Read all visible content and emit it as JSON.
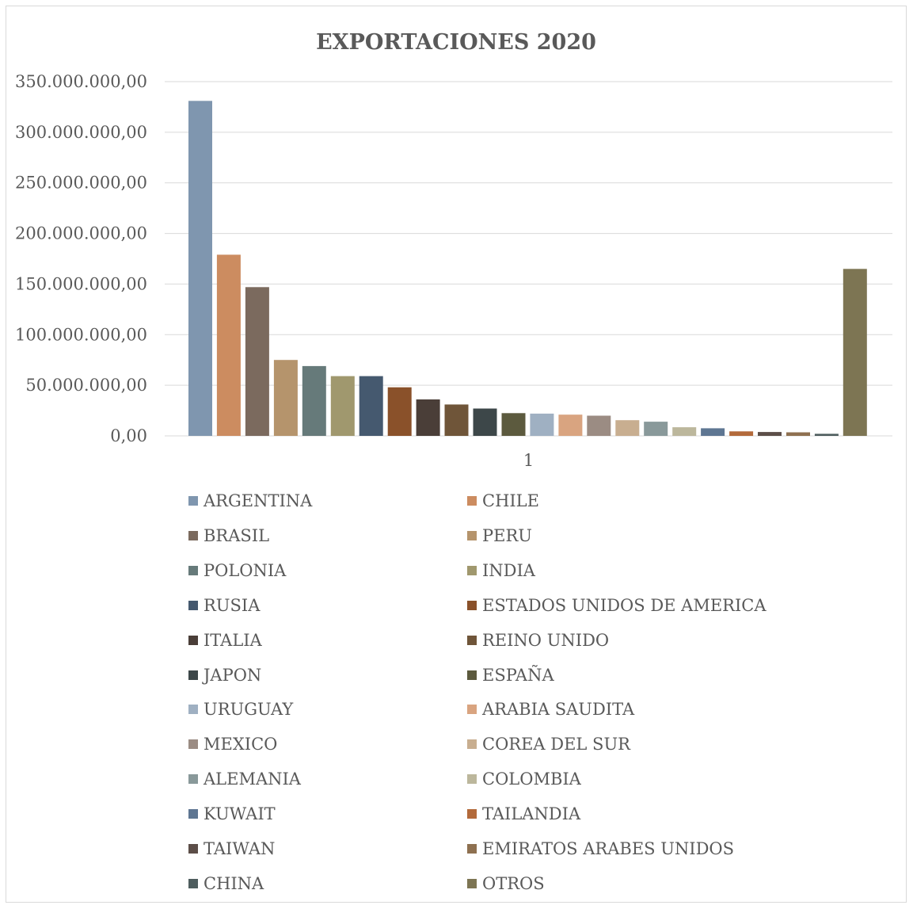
{
  "chart_data": {
    "type": "bar",
    "title": "EXPORTACIONES 2020",
    "categories": [
      "1"
    ],
    "ylim": [
      0,
      350000000
    ],
    "yticks": [
      0,
      50000000,
      100000000,
      150000000,
      200000000,
      250000000,
      300000000,
      350000000
    ],
    "ytick_labels": [
      "0,00",
      "50.000.000,00",
      "100.000.000,00",
      "150.000.000,00",
      "200.000.000,00",
      "250.000.000,00",
      "300.000.000,00",
      "350.000.000,00"
    ],
    "grid": true,
    "legend_position": "bottom",
    "series": [
      {
        "name": "ARGENTINA",
        "color": "#7f96af",
        "values": [
          331000000
        ]
      },
      {
        "name": "CHILE",
        "color": "#cc8c60",
        "values": [
          179000000
        ]
      },
      {
        "name": "BRASIL",
        "color": "#7b6a5e",
        "values": [
          147000000
        ]
      },
      {
        "name": "PERU",
        "color": "#b5946c",
        "values": [
          75000000
        ]
      },
      {
        "name": "POLONIA",
        "color": "#667a7a",
        "values": [
          69000000
        ]
      },
      {
        "name": "INDIA",
        "color": "#a0986e",
        "values": [
          59000000
        ]
      },
      {
        "name": "RUSIA",
        "color": "#45596f",
        "values": [
          59000000
        ]
      },
      {
        "name": "ESTADOS UNIDOS DE AMERICA",
        "color": "#8a512a",
        "values": [
          48000000
        ]
      },
      {
        "name": "ITALIA",
        "color": "#4a3e38",
        "values": [
          36000000
        ]
      },
      {
        "name": "REINO UNIDO",
        "color": "#6f5539",
        "values": [
          31000000
        ]
      },
      {
        "name": "JAPON",
        "color": "#3d4749",
        "values": [
          27000000
        ]
      },
      {
        "name": "ESPAÑA",
        "color": "#5c5a3e",
        "values": [
          22500000
        ]
      },
      {
        "name": "URUGUAY",
        "color": "#9fb0c2",
        "values": [
          22000000
        ]
      },
      {
        "name": "ARABIA SAUDITA",
        "color": "#d9a480",
        "values": [
          21000000
        ]
      },
      {
        "name": "MEXICO",
        "color": "#9b8c83",
        "values": [
          20000000
        ]
      },
      {
        "name": "COREA DEL SUR",
        "color": "#c8ae90",
        "values": [
          15500000
        ]
      },
      {
        "name": "ALEMANIA",
        "color": "#89999a",
        "values": [
          14000000
        ]
      },
      {
        "name": "COLOMBIA",
        "color": "#bcb79c",
        "values": [
          8500000
        ]
      },
      {
        "name": "KUWAIT",
        "color": "#5e7692",
        "values": [
          7500000
        ]
      },
      {
        "name": "TAILANDIA",
        "color": "#b36a3b",
        "values": [
          4500000
        ]
      },
      {
        "name": "TAIWAN",
        "color": "#5c4e48",
        "values": [
          3800000
        ]
      },
      {
        "name": "EMIRATOS ARABES UNIDOS",
        "color": "#8e7050",
        "values": [
          3500000
        ]
      },
      {
        "name": "CHINA",
        "color": "#4e5d5e",
        "values": [
          2000000
        ]
      },
      {
        "name": "OTROS",
        "color": "#7d7553",
        "values": [
          165000000
        ]
      }
    ]
  }
}
